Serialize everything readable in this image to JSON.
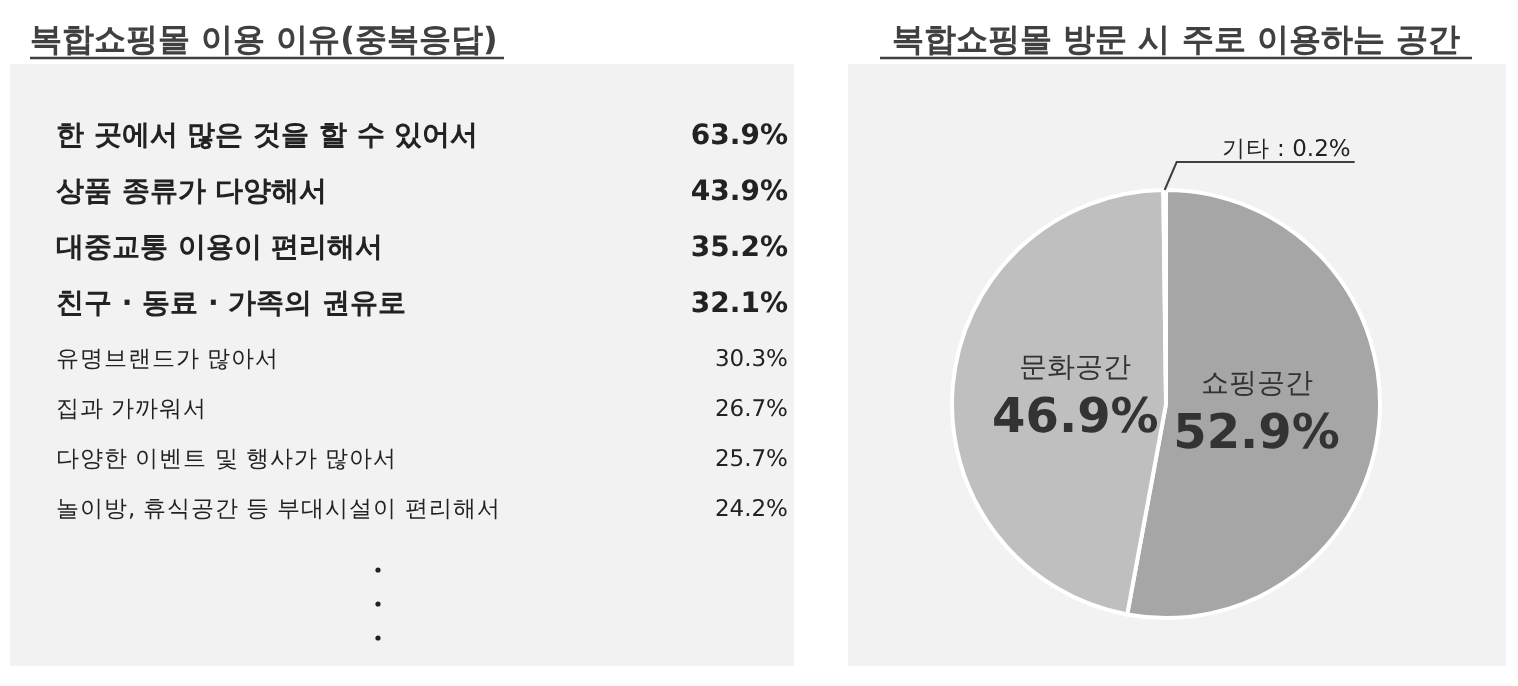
{
  "chart_data": [
    {
      "type": "other",
      "title": "복합쇼핑몰 이용 이유(중복응답)",
      "categories": [
        "한 곳에서 많은 것을 할 수 있어서",
        "상품 종류가 다양해서",
        "대중교통 이용이 편리해서",
        "친구 · 동료  · 가족의 권유로",
        "유명브랜드가 많아서",
        "집과 가까워서",
        "다양한 이벤트 및 행사가 많아서",
        "놀이방, 휴식공간 등 부대시설이 편리해서"
      ],
      "value_labels": [
        "63.9%",
        "43.9%",
        "35.2%",
        "32.1%",
        "30.3%",
        "26.7%",
        "25.7%",
        "24.2%"
      ]
    },
    {
      "type": "pie",
      "title": "복합쇼핑몰 방문 시 주로 이용하는 공간",
      "categories": [
        "쇼핑공간",
        "문화공간",
        "기타"
      ],
      "values": [
        52.9,
        46.9,
        0.2
      ],
      "colors": [
        "#a6a6a6",
        "#bfbfbf",
        "#d9d9d9"
      ],
      "value_labels": [
        "52.9%",
        "46.9%",
        "0.2%"
      ]
    }
  ]
}
